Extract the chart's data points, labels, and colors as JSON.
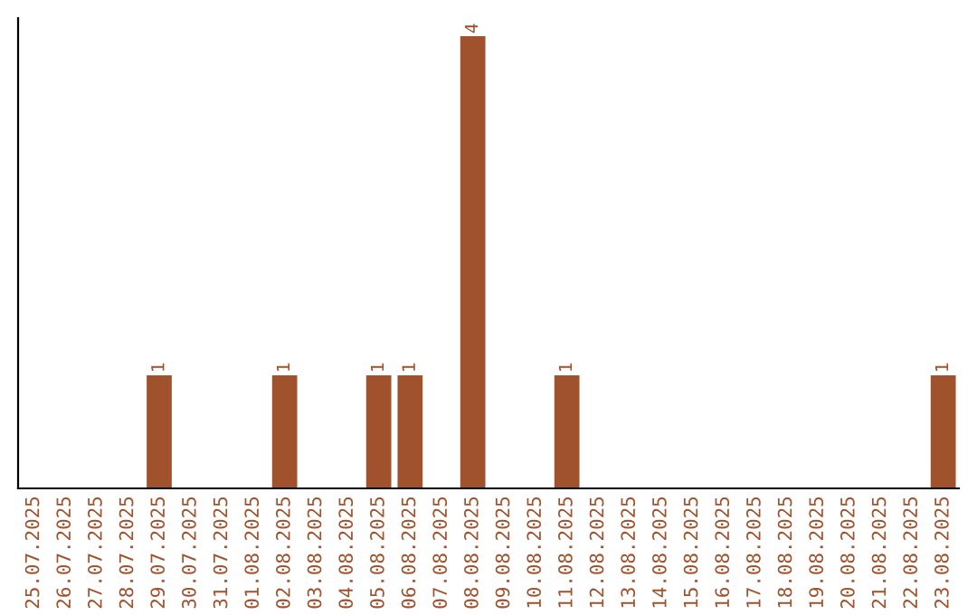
{
  "chart_data": {
    "type": "bar",
    "categories": [
      "25.07.2025",
      "26.07.2025",
      "27.07.2025",
      "28.07.2025",
      "29.07.2025",
      "30.07.2025",
      "31.07.2025",
      "01.08.2025",
      "02.08.2025",
      "03.08.2025",
      "04.08.2025",
      "05.08.2025",
      "06.08.2025",
      "07.08.2025",
      "08.08.2025",
      "09.08.2025",
      "10.08.2025",
      "11.08.2025",
      "12.08.2025",
      "13.08.2025",
      "14.08.2025",
      "15.08.2025",
      "16.08.2025",
      "17.08.2025",
      "18.08.2025",
      "19.08.2025",
      "20.08.2025",
      "21.08.2025",
      "22.08.2025",
      "23.08.2025"
    ],
    "values": [
      0,
      0,
      0,
      0,
      1,
      0,
      0,
      0,
      1,
      0,
      0,
      1,
      1,
      0,
      4,
      0,
      0,
      1,
      0,
      0,
      0,
      0,
      0,
      0,
      0,
      0,
      0,
      0,
      0,
      1
    ],
    "value_labels": [
      null,
      null,
      null,
      null,
      "1",
      null,
      null,
      null,
      "1",
      null,
      null,
      "1",
      "1",
      null,
      "4",
      null,
      null,
      "1",
      null,
      null,
      null,
      null,
      null,
      null,
      null,
      null,
      null,
      null,
      null,
      "1"
    ],
    "color": "#a0522d",
    "tick_labels": "x",
    "grid": false
  }
}
